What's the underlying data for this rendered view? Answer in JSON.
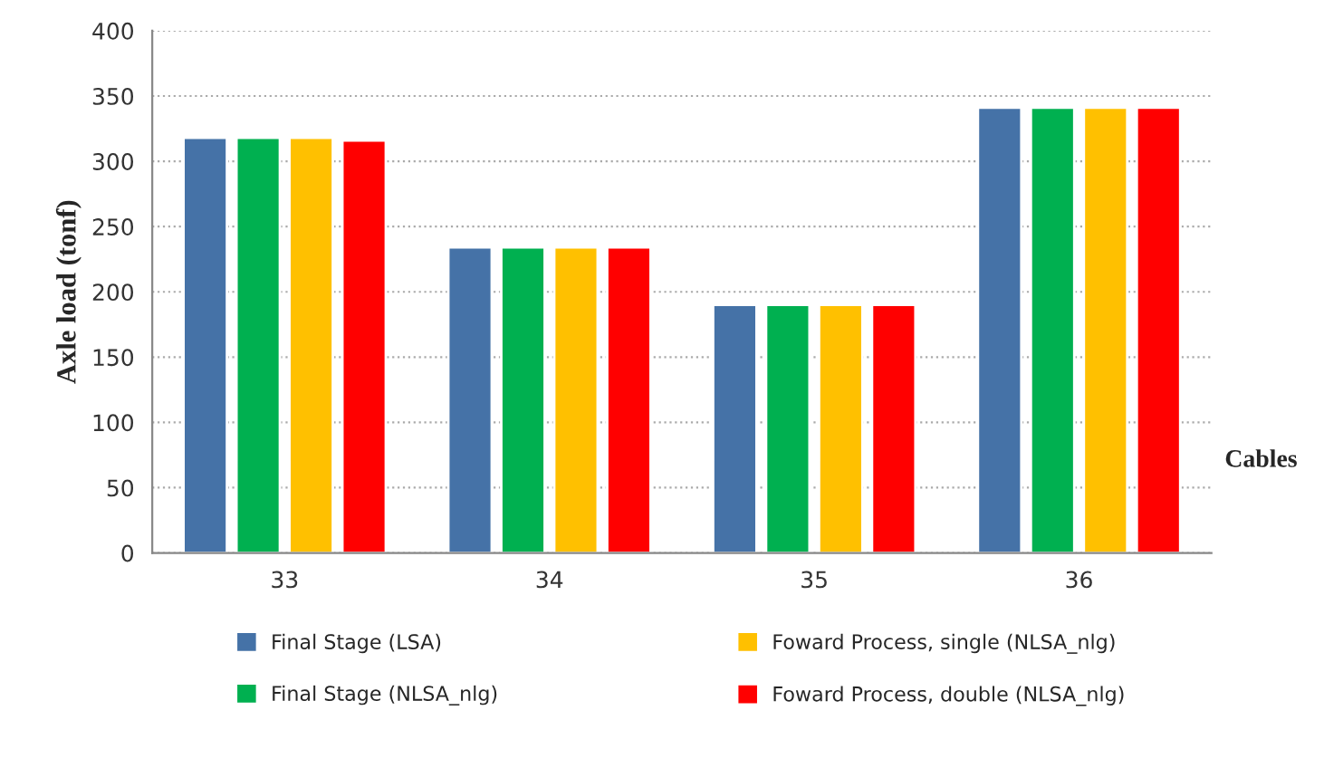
{
  "chart_data": {
    "type": "bar",
    "ylabel": "Axle load (tonf)",
    "categories": [
      "33",
      "34",
      "35",
      "36"
    ],
    "series": [
      {
        "name": "Final Stage (LSA)",
        "color": "#4572a7",
        "values": [
          318,
          234,
          190,
          341
        ]
      },
      {
        "name": "Final Stage (NLSA_nlg)",
        "color": "#00b050",
        "values": [
          318,
          234,
          190,
          341
        ]
      },
      {
        "name": "Foward Process, single (NLSA_nlg)",
        "color": "#ffc000",
        "values": [
          318,
          234,
          190,
          341
        ]
      },
      {
        "name": "Foward Process, double (NLSA_nlg)",
        "color": "#ff0000",
        "values": [
          316,
          234,
          190,
          341
        ]
      }
    ],
    "ylim": [
      0,
      400
    ],
    "yticks": [
      0,
      50,
      100,
      150,
      200,
      250,
      300,
      350,
      400
    ],
    "grid": "y",
    "legend": "bottom",
    "annotations": [
      "Cables"
    ]
  }
}
